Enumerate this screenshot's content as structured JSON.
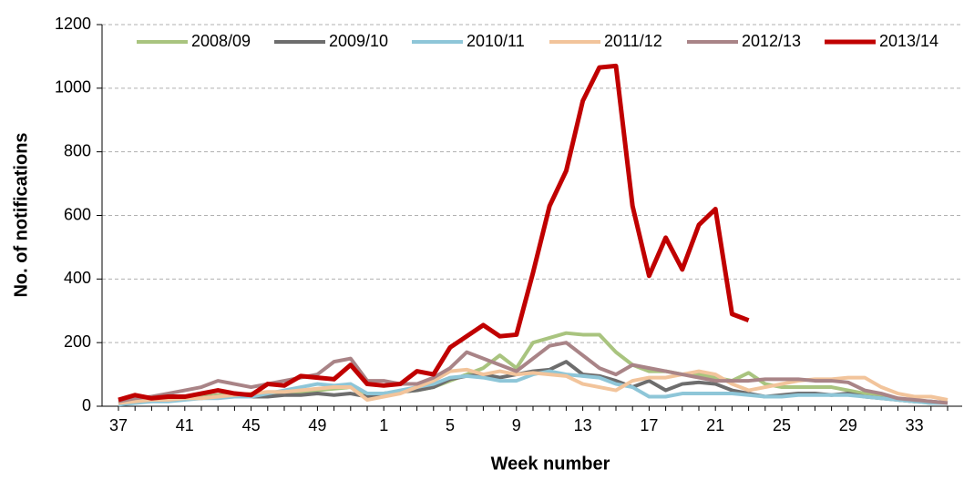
{
  "chart_data": {
    "type": "line",
    "x_label": "Week number",
    "y_label": "No. of notifications",
    "categories": [
      37,
      null,
      null,
      null,
      41,
      null,
      null,
      null,
      45,
      null,
      null,
      null,
      49,
      null,
      null,
      null,
      1,
      null,
      null,
      null,
      5,
      null,
      null,
      null,
      9,
      null,
      null,
      null,
      13,
      null,
      null,
      null,
      17,
      null,
      null,
      null,
      21,
      null,
      null,
      null,
      25,
      null,
      null,
      null,
      29,
      null,
      null,
      null,
      33,
      null,
      null
    ],
    "series": [
      {
        "name": "2008/09",
        "color": "#a9c47f",
        "values": [
          10,
          15,
          20,
          25,
          30,
          30,
          35,
          35,
          30,
          40,
          40,
          45,
          50,
          55,
          60,
          40,
          40,
          45,
          50,
          60,
          80,
          100,
          120,
          160,
          120,
          200,
          215,
          230,
          225,
          225,
          170,
          130,
          110,
          110,
          100,
          100,
          90,
          80,
          105,
          70,
          60,
          60,
          60,
          60,
          50,
          40,
          30,
          20,
          15,
          10,
          10
        ]
      },
      {
        "name": "2009/10",
        "color": "#6d6d6d",
        "values": [
          10,
          15,
          20,
          20,
          25,
          25,
          30,
          30,
          30,
          30,
          35,
          35,
          40,
          35,
          40,
          30,
          40,
          45,
          50,
          60,
          85,
          95,
          100,
          90,
          100,
          110,
          115,
          140,
          100,
          95,
          80,
          60,
          80,
          50,
          70,
          75,
          70,
          50,
          40,
          30,
          35,
          40,
          40,
          35,
          40,
          30,
          25,
          20,
          15,
          15,
          10
        ]
      },
      {
        "name": "2010/11",
        "color": "#8ec6d8",
        "values": [
          5,
          10,
          15,
          15,
          20,
          25,
          25,
          30,
          30,
          40,
          50,
          60,
          70,
          65,
          70,
          40,
          40,
          50,
          60,
          70,
          90,
          95,
          90,
          80,
          80,
          100,
          110,
          100,
          95,
          90,
          70,
          60,
          30,
          30,
          40,
          40,
          40,
          40,
          35,
          30,
          30,
          35,
          35,
          35,
          35,
          30,
          25,
          20,
          15,
          10,
          10
        ]
      },
      {
        "name": "2011/12",
        "color": "#f2c49b",
        "values": [
          10,
          15,
          20,
          20,
          25,
          25,
          30,
          35,
          40,
          45,
          45,
          50,
          55,
          60,
          60,
          20,
          30,
          40,
          60,
          80,
          110,
          115,
          100,
          110,
          100,
          105,
          100,
          95,
          70,
          60,
          50,
          80,
          90,
          90,
          100,
          110,
          100,
          70,
          50,
          60,
          70,
          80,
          85,
          85,
          90,
          90,
          60,
          40,
          30,
          30,
          20
        ]
      },
      {
        "name": "2012/13",
        "color": "#a98487",
        "values": [
          15,
          25,
          30,
          40,
          50,
          60,
          80,
          70,
          60,
          70,
          80,
          90,
          100,
          140,
          150,
          80,
          80,
          70,
          70,
          90,
          120,
          170,
          150,
          130,
          110,
          150,
          190,
          200,
          160,
          120,
          100,
          130,
          120,
          110,
          100,
          90,
          80,
          80,
          80,
          85,
          85,
          85,
          80,
          80,
          75,
          50,
          40,
          25,
          20,
          15,
          10
        ]
      },
      {
        "name": "2013/14",
        "color": "#c00000",
        "values": [
          20,
          35,
          25,
          30,
          30,
          40,
          50,
          40,
          35,
          70,
          65,
          95,
          90,
          85,
          130,
          70,
          65,
          70,
          110,
          100,
          185,
          220,
          255,
          220,
          225,
          420,
          630,
          740,
          960,
          1065,
          1070,
          630,
          410,
          530,
          430,
          570,
          620,
          290,
          270,
          null,
          null,
          null,
          null,
          null,
          null,
          null,
          null,
          null,
          null,
          null,
          null
        ]
      }
    ],
    "ylim": [
      0,
      1200
    ],
    "yticks": [
      0,
      200,
      400,
      600,
      800,
      1000,
      1200
    ],
    "grid": true,
    "legend": "top"
  }
}
